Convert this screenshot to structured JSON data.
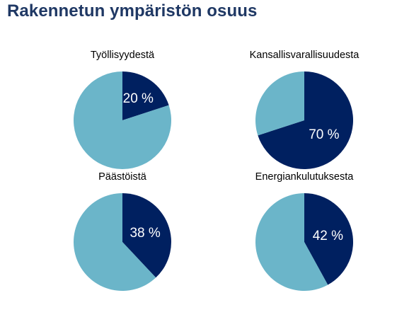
{
  "title": "Rakennetun ympäristön osuus",
  "colors": {
    "primary": "#002060",
    "rest": "#6bb5c9",
    "title": "#1f3864",
    "label": "#ffffff"
  },
  "chart_data": [
    {
      "type": "pie",
      "title": "Työllisyydestä",
      "slices": [
        {
          "label": "20 %",
          "value": 20,
          "color": "#002060"
        },
        {
          "label": "",
          "value": 80,
          "color": "#6bb5c9"
        }
      ]
    },
    {
      "type": "pie",
      "title": "Kansallisvarallisuudesta",
      "slices": [
        {
          "label": "70 %",
          "value": 70,
          "color": "#002060"
        },
        {
          "label": "",
          "value": 30,
          "color": "#6bb5c9"
        }
      ]
    },
    {
      "type": "pie",
      "title": "Päästöistä",
      "slices": [
        {
          "label": "38 %",
          "value": 38,
          "color": "#002060"
        },
        {
          "label": "",
          "value": 62,
          "color": "#6bb5c9"
        }
      ]
    },
    {
      "type": "pie",
      "title": "Energiankulutuksesta",
      "slices": [
        {
          "label": "42 %",
          "value": 42,
          "color": "#002060"
        },
        {
          "label": "",
          "value": 58,
          "color": "#6bb5c9"
        }
      ]
    }
  ]
}
